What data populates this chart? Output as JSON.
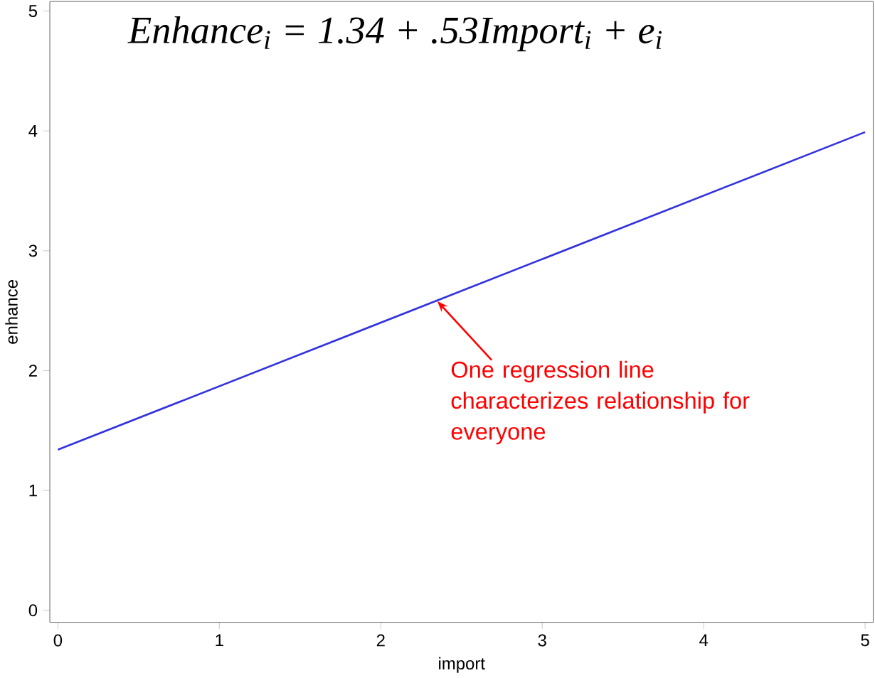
{
  "chart_data": {
    "type": "line",
    "title": "Enhance$_{i}$ = 1.34 + .53Import$_{i}$ + e$_{i}$",
    "xlabel": "import",
    "ylabel": "enhance",
    "x": [
      0,
      5
    ],
    "series": [
      {
        "color": "#3333dd",
        "values": [
          1.34,
          3.99
        ]
      }
    ],
    "xlim": [
      -0.05,
      5.05
    ],
    "ylim": [
      -0.1,
      5.08
    ],
    "xticks": [
      0,
      1,
      2,
      3,
      4,
      5
    ],
    "yticks": [
      0,
      1,
      2,
      3,
      4,
      5
    ],
    "annotations": [
      {
        "text": "One regression line characterizes relationship for everyone",
        "x": 2.35,
        "y": 2.58
      }
    ],
    "grid": false,
    "marker": "none",
    "line_style": "solid"
  }
}
